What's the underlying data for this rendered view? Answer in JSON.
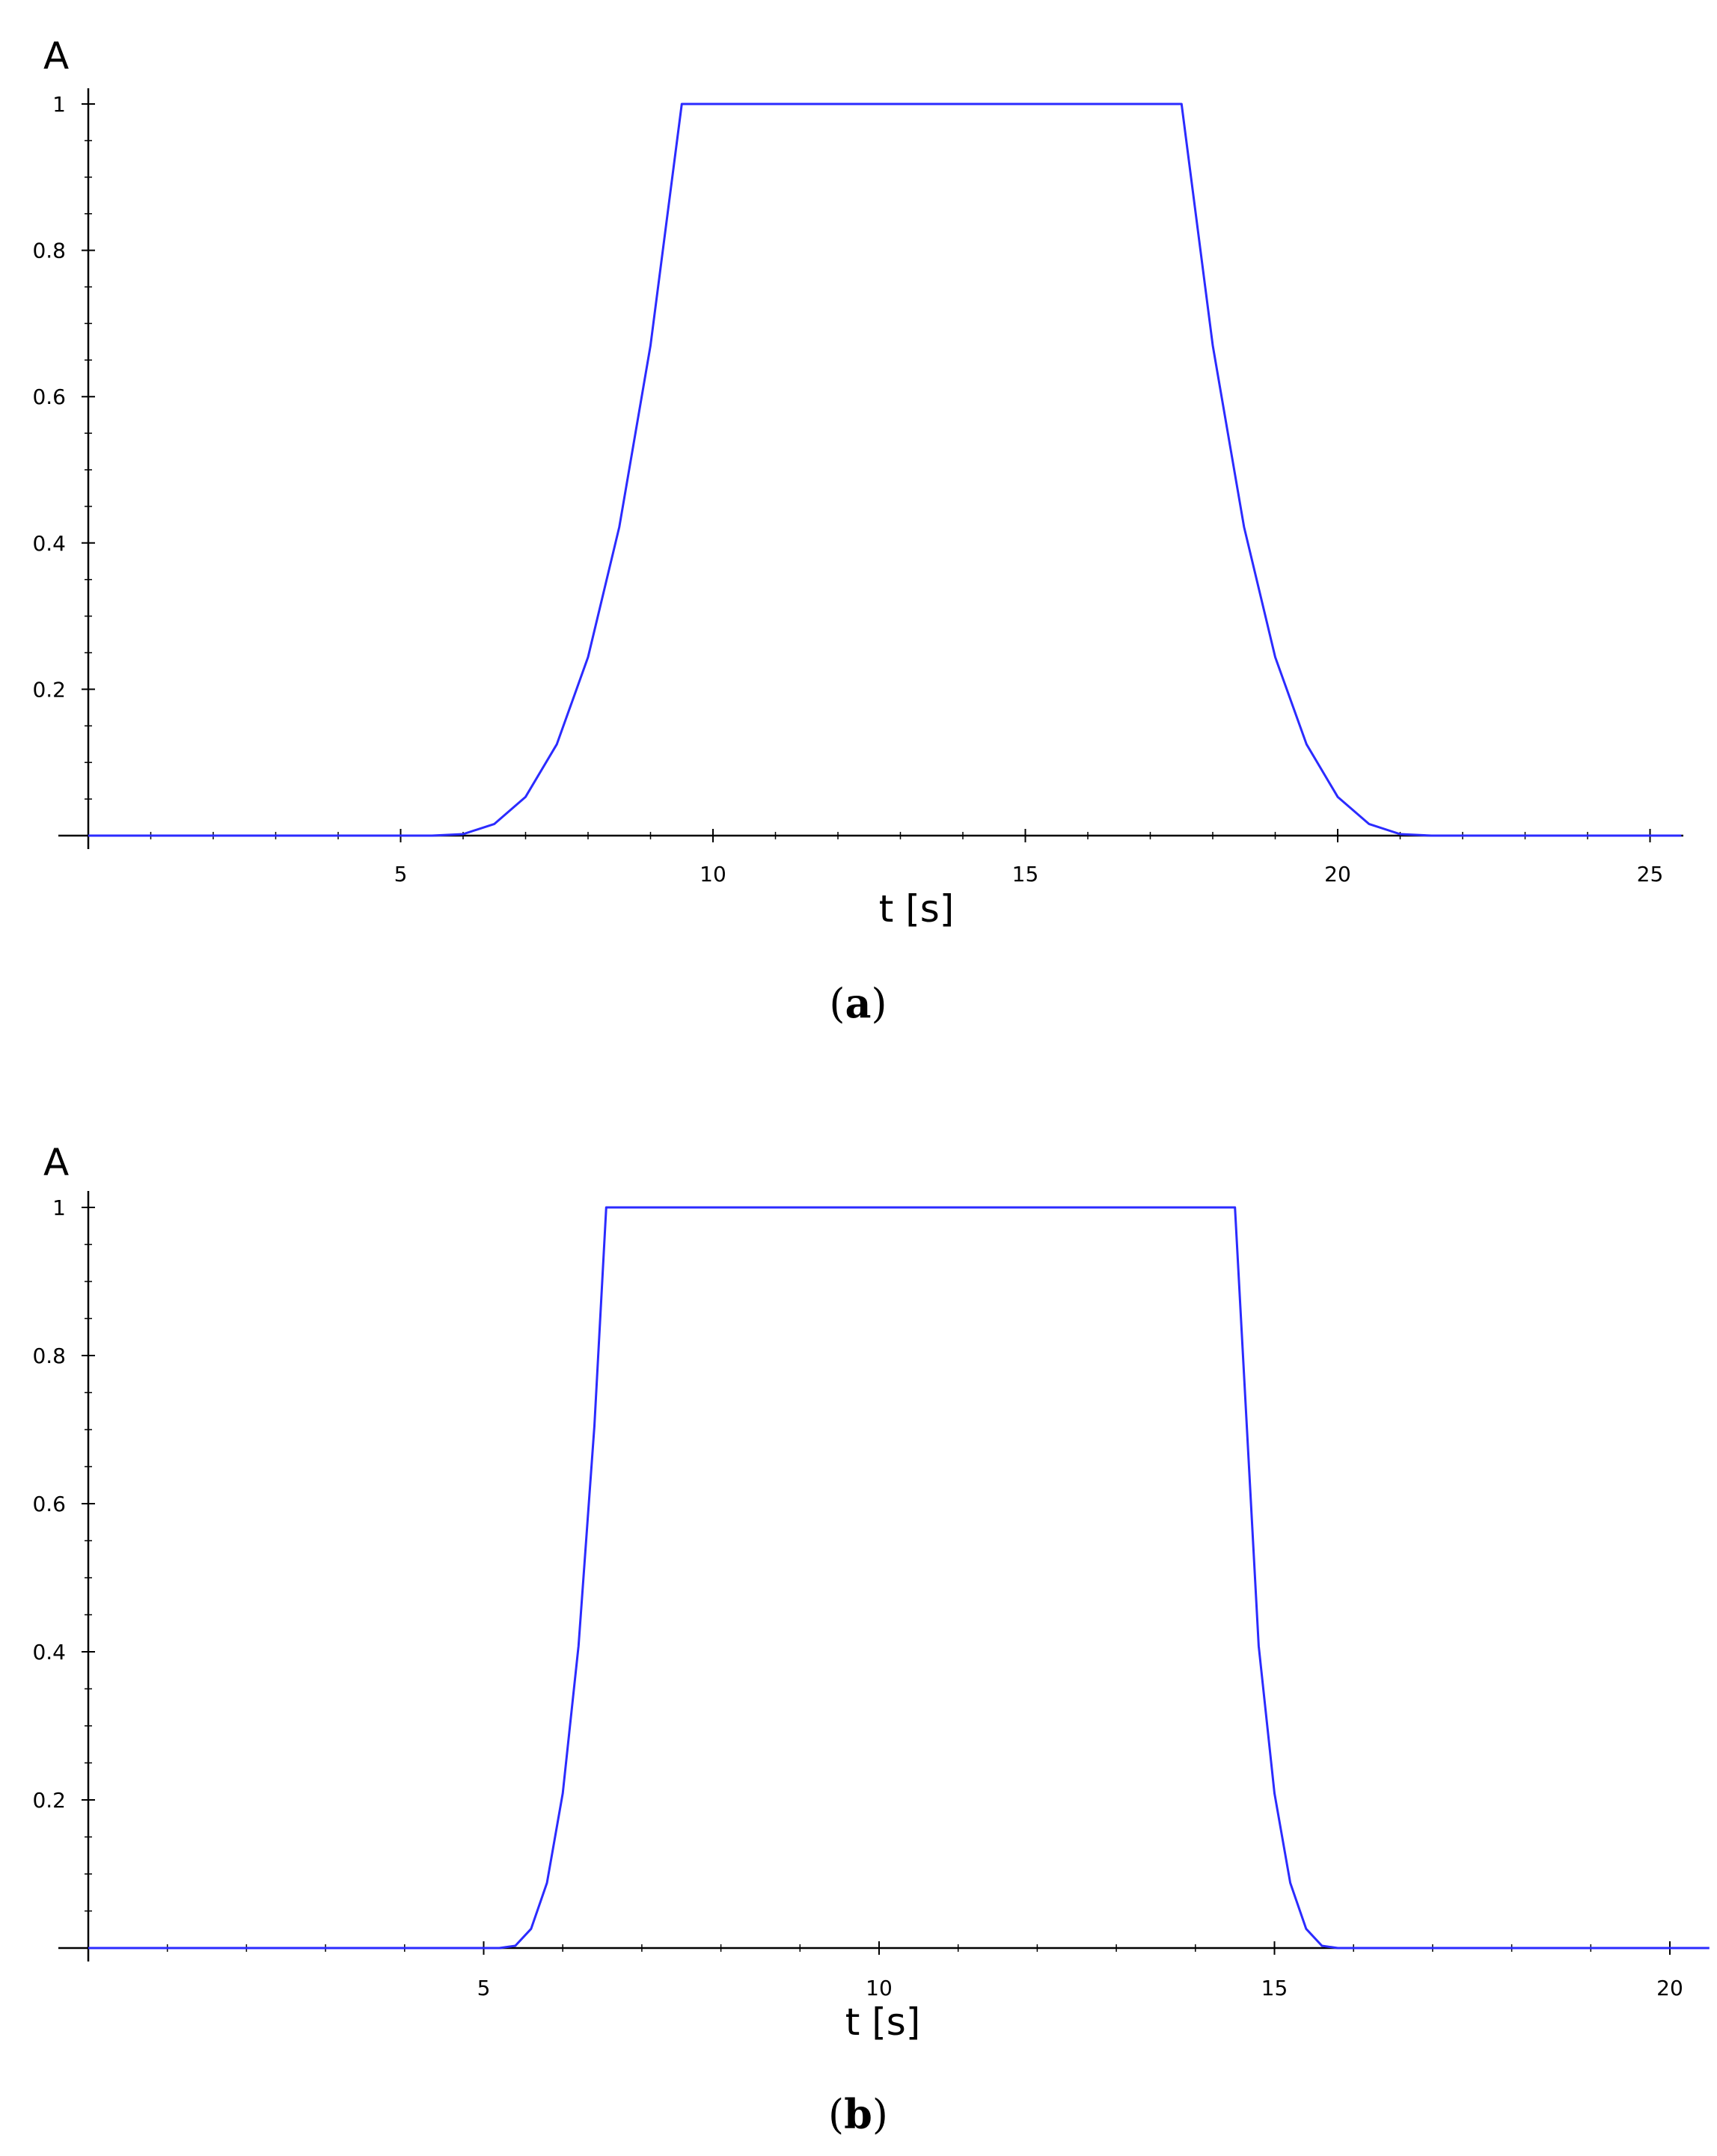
{
  "chart_data": [
    {
      "type": "line",
      "panel": "a",
      "caption_letter": "a",
      "xlabel": "t [s]",
      "ylabel": "A",
      "xlim": [
        0,
        25.5
      ],
      "ylim": [
        0,
        1
      ],
      "xticks": [
        5,
        10,
        15,
        20,
        25
      ],
      "yticks": [
        0.2,
        0.4,
        0.6,
        0.8,
        1
      ],
      "ytick_labels": [
        "0.2",
        "0.4",
        "0.6",
        "0.8",
        "1"
      ],
      "grid": false,
      "color": "#2b2bff",
      "series": [
        {
          "x": [
            0,
            5.5,
            6.0,
            6.5,
            7.0,
            7.5,
            8.0,
            8.5,
            9.0,
            9.5,
            17.5,
            18.0,
            18.5,
            19.0,
            19.5,
            20.0,
            20.5,
            21.0,
            21.5,
            25.5
          ],
          "y": [
            0,
            0,
            0.002,
            0.016,
            0.053,
            0.125,
            0.244,
            0.422,
            0.67,
            1.0,
            1.0,
            0.67,
            0.422,
            0.244,
            0.125,
            0.053,
            0.016,
            0.002,
            0,
            0
          ]
        }
      ]
    },
    {
      "type": "line",
      "panel": "b",
      "caption_letter": "b",
      "xlabel": "t [s]",
      "ylabel": "A",
      "xlim": [
        0,
        20.5
      ],
      "ylim": [
        0,
        1
      ],
      "xticks": [
        5,
        10,
        15,
        20
      ],
      "yticks": [
        0.2,
        0.4,
        0.6,
        0.8,
        1
      ],
      "ytick_labels": [
        "0.2",
        "0.4",
        "0.6",
        "0.8",
        "1"
      ],
      "grid": false,
      "color": "#2b2bff",
      "series": [
        {
          "x": [
            0,
            5.2,
            5.4,
            5.6,
            5.8,
            6.0,
            6.2,
            6.4,
            6.55,
            14.5,
            14.65,
            14.8,
            15.0,
            15.2,
            15.4,
            15.6,
            15.8,
            20.5
          ],
          "y": [
            0,
            0,
            0.003,
            0.026,
            0.088,
            0.209,
            0.408,
            0.705,
            1.0,
            1.0,
            0.705,
            0.408,
            0.209,
            0.088,
            0.026,
            0.003,
            0,
            0
          ]
        }
      ]
    }
  ]
}
